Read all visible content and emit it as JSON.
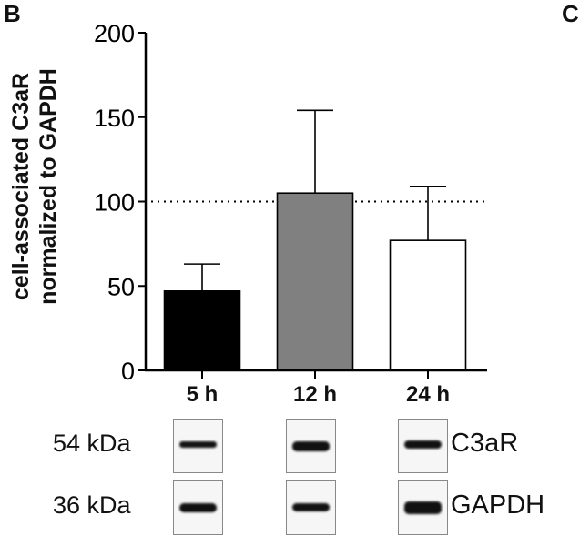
{
  "panel_letters": {
    "left": "B",
    "right": "C"
  },
  "chart_data": {
    "type": "bar",
    "title": "",
    "xlabel": "",
    "ylabel": "cell-associated C3aR normalized to GAPDH",
    "ylabel_lines": [
      "cell-associated C3aR",
      "normalized to GAPDH"
    ],
    "categories": [
      "5 h",
      "12 h",
      "24 h"
    ],
    "values": [
      47,
      105,
      77
    ],
    "error_upper": [
      63,
      154,
      109
    ],
    "bar_colors": [
      "#000000",
      "#808080",
      "#ffffff"
    ],
    "ylim": [
      0,
      200
    ],
    "yticks": [
      0,
      50,
      100,
      150,
      200
    ],
    "reference_line": {
      "y": 100,
      "style": "dotted"
    },
    "grid": false,
    "legend": null
  },
  "blot": {
    "rows": [
      {
        "mw": "54 kDa",
        "protein": "C3aR"
      },
      {
        "mw": "36 kDa",
        "protein": "GAPDH"
      }
    ],
    "lanes": [
      "5 h",
      "12 h",
      "24 h"
    ]
  }
}
